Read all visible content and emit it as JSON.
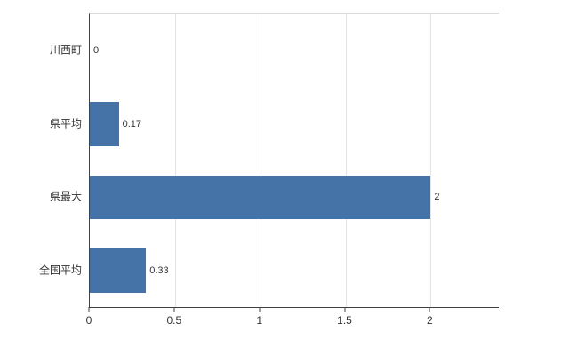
{
  "chart_data": {
    "type": "bar",
    "orientation": "horizontal",
    "title": "",
    "xlabel": "",
    "ylabel": "",
    "categories": [
      "川西町",
      "県平均",
      "県最大",
      "全国平均"
    ],
    "values": [
      0,
      0.17,
      2,
      0.33
    ],
    "value_labels": [
      "0",
      "0.17",
      "2",
      "0.33"
    ],
    "x_ticks": [
      0,
      0.5,
      1,
      1.5,
      2
    ],
    "x_tick_labels": [
      "0",
      "0.5",
      "1",
      "1.5",
      "2"
    ],
    "xlim": [
      0,
      2.4
    ],
    "grid": true,
    "legend": "none",
    "bar_color": "#4572a7",
    "gridline_color": "#e3e3e3",
    "axis_color": "#404040",
    "text_color": "#333333"
  }
}
